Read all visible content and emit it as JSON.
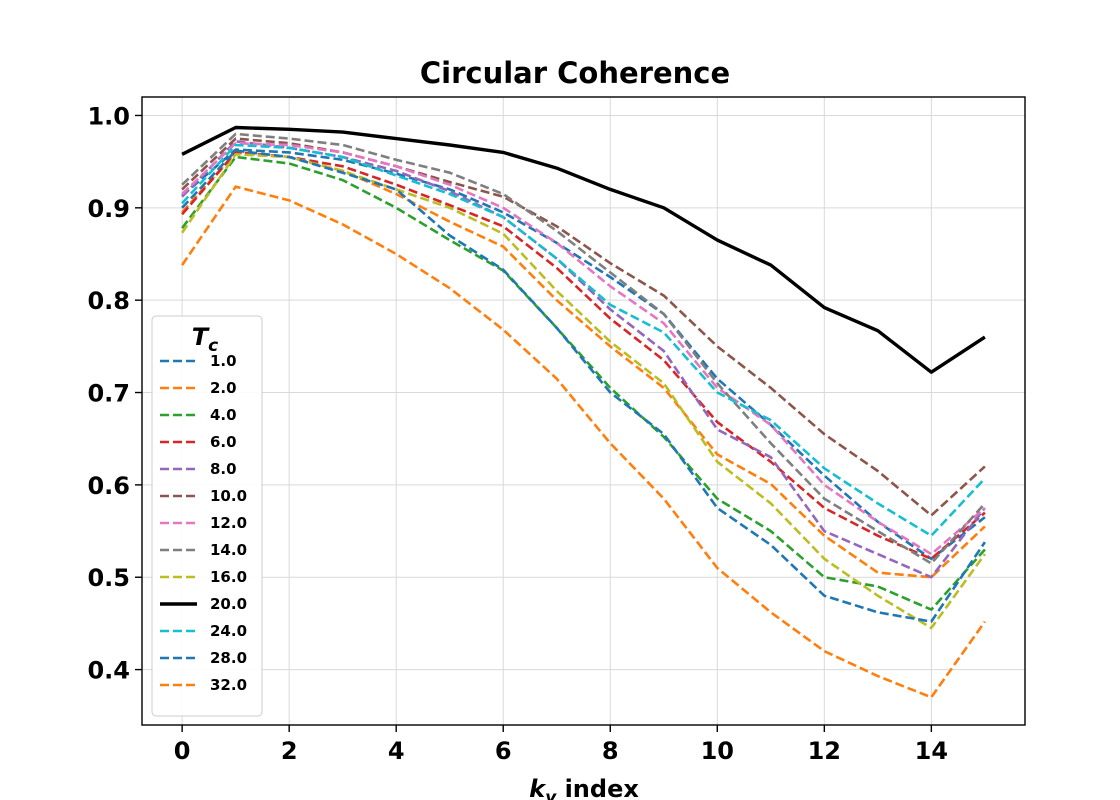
{
  "chart_data": {
    "type": "line",
    "title": "Circular Coherence",
    "xlabel": "k_y index",
    "xlabel_main": "k",
    "xlabel_sub": "y",
    "xlabel_rest": " index",
    "ylabel": "",
    "xlim": [
      -0.75,
      15.75
    ],
    "ylim": [
      0.34,
      1.02
    ],
    "xticks": [
      0,
      2,
      4,
      6,
      8,
      10,
      12,
      14
    ],
    "yticks": [
      0.4,
      0.5,
      0.6,
      0.7,
      0.8,
      0.9,
      1.0
    ],
    "ytick_labels": [
      "0.4",
      "0.5",
      "0.6",
      "0.7",
      "0.8",
      "0.9",
      "1.0"
    ],
    "grid": true,
    "legend": {
      "title_main": "T",
      "title_sub": "c",
      "placement": "lower-left"
    },
    "x": [
      0,
      1,
      2,
      3,
      4,
      5,
      6,
      7,
      8,
      9,
      10,
      11,
      12,
      13,
      14,
      15
    ],
    "series": [
      {
        "name": "1.0",
        "color": "#1f77b4",
        "style": "dashed",
        "values": [
          0.913,
          0.963,
          0.96,
          0.952,
          0.937,
          0.92,
          0.895,
          0.862,
          0.825,
          0.785,
          0.715,
          0.665,
          0.61,
          0.56,
          0.52,
          0.565
        ]
      },
      {
        "name": "2.0",
        "color": "#ff7f0e",
        "style": "dashed",
        "values": [
          0.895,
          0.96,
          0.955,
          0.94,
          0.915,
          0.885,
          0.858,
          0.8,
          0.75,
          0.705,
          0.633,
          0.601,
          0.545,
          0.505,
          0.5,
          0.555
        ]
      },
      {
        "name": "4.0",
        "color": "#2ca02c",
        "style": "dashed",
        "values": [
          0.878,
          0.955,
          0.948,
          0.93,
          0.9,
          0.865,
          0.832,
          0.77,
          0.705,
          0.652,
          0.585,
          0.55,
          0.5,
          0.49,
          0.465,
          0.53
        ]
      },
      {
        "name": "6.0",
        "color": "#d62728",
        "style": "dashed",
        "values": [
          0.893,
          0.96,
          0.955,
          0.945,
          0.925,
          0.903,
          0.88,
          0.835,
          0.78,
          0.735,
          0.668,
          0.625,
          0.575,
          0.545,
          0.52,
          0.57
        ]
      },
      {
        "name": "8.0",
        "color": "#9467bd",
        "style": "dashed",
        "values": [
          0.912,
          0.972,
          0.965,
          0.955,
          0.94,
          0.918,
          0.89,
          0.845,
          0.79,
          0.745,
          0.66,
          0.63,
          0.55,
          0.525,
          0.5,
          0.575
        ]
      },
      {
        "name": "10.0",
        "color": "#8c564b",
        "style": "dashed",
        "values": [
          0.92,
          0.975,
          0.97,
          0.96,
          0.945,
          0.928,
          0.912,
          0.88,
          0.84,
          0.805,
          0.75,
          0.705,
          0.655,
          0.615,
          0.567,
          0.62
        ]
      },
      {
        "name": "12.0",
        "color": "#e377c2",
        "style": "dashed",
        "values": [
          0.915,
          0.97,
          0.968,
          0.96,
          0.945,
          0.925,
          0.9,
          0.862,
          0.815,
          0.775,
          0.705,
          0.665,
          0.6,
          0.56,
          0.525,
          0.575
        ]
      },
      {
        "name": "14.0",
        "color": "#7f7f7f",
        "style": "dashed",
        "values": [
          0.925,
          0.98,
          0.975,
          0.968,
          0.952,
          0.938,
          0.915,
          0.875,
          0.83,
          0.785,
          0.71,
          0.645,
          0.585,
          0.55,
          0.515,
          0.58
        ]
      },
      {
        "name": "16.0",
        "color": "#bcbd22",
        "style": "dashed",
        "values": [
          0.873,
          0.958,
          0.955,
          0.94,
          0.92,
          0.9,
          0.872,
          0.81,
          0.755,
          0.71,
          0.625,
          0.58,
          0.52,
          0.48,
          0.445,
          0.525
        ]
      },
      {
        "name": "20.0",
        "color": "#000000",
        "style": "solid",
        "values": [
          0.958,
          0.987,
          0.985,
          0.982,
          0.975,
          0.968,
          0.96,
          0.943,
          0.92,
          0.9,
          0.865,
          0.838,
          0.792,
          0.767,
          0.722,
          0.76
        ]
      },
      {
        "name": "24.0",
        "color": "#17becf",
        "style": "dashed",
        "values": [
          0.905,
          0.968,
          0.965,
          0.955,
          0.935,
          0.915,
          0.89,
          0.845,
          0.795,
          0.765,
          0.7,
          0.67,
          0.618,
          0.58,
          0.545,
          0.607
        ]
      },
      {
        "name": "28.0",
        "color": "#1f77b4",
        "style": "dashed",
        "values": [
          0.9,
          0.962,
          0.955,
          0.938,
          0.92,
          0.87,
          0.833,
          0.77,
          0.7,
          0.655,
          0.575,
          0.535,
          0.48,
          0.462,
          0.452,
          0.538
        ]
      },
      {
        "name": "32.0",
        "color": "#ff7f0e",
        "style": "dashed",
        "values": [
          0.838,
          0.923,
          0.908,
          0.882,
          0.85,
          0.813,
          0.768,
          0.715,
          0.645,
          0.585,
          0.51,
          0.462,
          0.42,
          0.393,
          0.37,
          0.452
        ]
      }
    ]
  }
}
